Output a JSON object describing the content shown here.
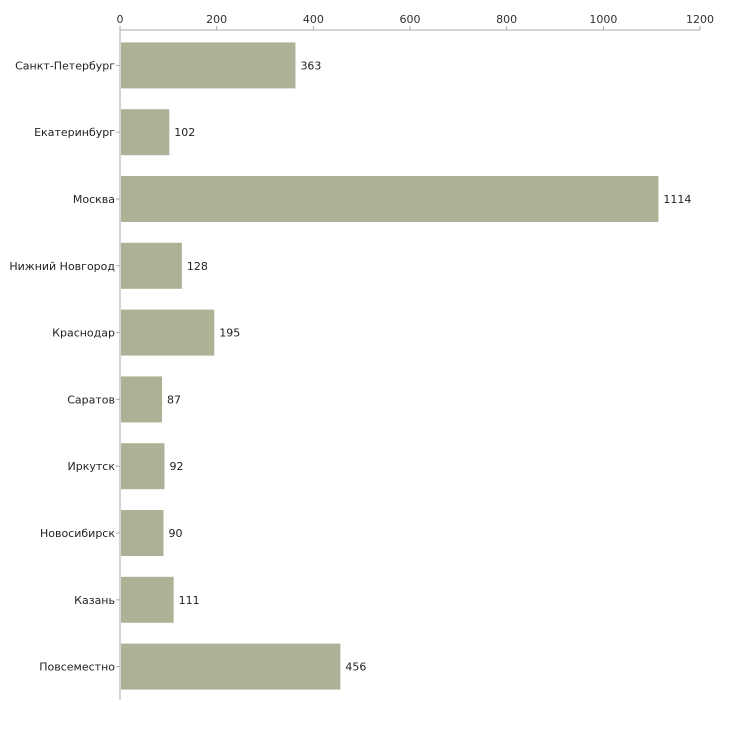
{
  "chart_data": {
    "type": "bar",
    "orientation": "horizontal",
    "title": "",
    "xlabel": "",
    "ylabel": "",
    "xlim": [
      0,
      1200
    ],
    "ticks": [
      0,
      200,
      400,
      600,
      800,
      1000,
      1200
    ],
    "tick_labels": [
      "0",
      "200",
      "400",
      "600",
      "800",
      "1000",
      "1200"
    ],
    "categories": [
      "Санкт-Петербург",
      "Екатеринбург",
      "Москва",
      "Нижний Новгород",
      "Краснодар",
      "Саратов",
      "Иркутск",
      "Новосибирск",
      "Казань",
      "Повсеместно"
    ],
    "values": [
      363,
      102,
      1114,
      128,
      195,
      87,
      92,
      90,
      111,
      456
    ],
    "value_labels": [
      "363",
      "102",
      "1114",
      "128",
      "195",
      "87",
      "92",
      "90",
      "111",
      "456"
    ],
    "grid": false,
    "legend": "none",
    "bar_color": "#adb296",
    "axis_color": "#aaaaaa"
  }
}
